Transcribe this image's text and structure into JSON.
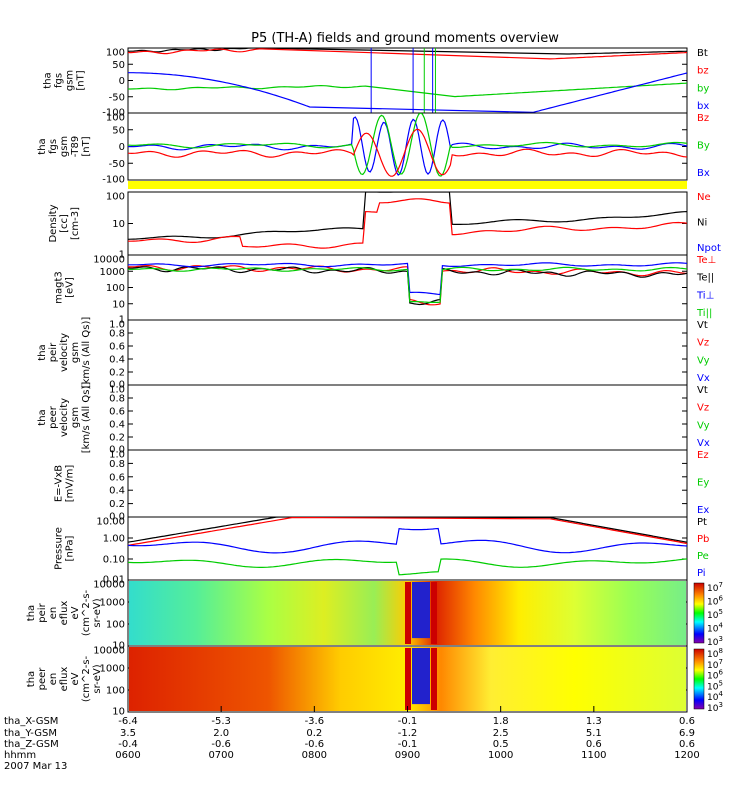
{
  "title": "P5 (TH-A) fields and ground moments overview",
  "chart_data": [
    {
      "type": "line",
      "panel": "fgs",
      "ylabel": [
        "tha",
        "fgs",
        "gsm",
        "[nT]"
      ],
      "yticks": [
        100,
        50,
        0,
        -50,
        -100
      ],
      "ylim": [
        -100,
        100
      ],
      "series": [
        {
          "name": "Bt",
          "color": "#000000"
        },
        {
          "name": "bz",
          "color": "#ff0000"
        },
        {
          "name": "by",
          "color": "#00cc00"
        },
        {
          "name": "bx",
          "color": "#0000ff"
        }
      ]
    },
    {
      "type": "line",
      "panel": "fgs-t89",
      "ylabel": [
        "tha",
        "fgs",
        "gsm",
        "-T89",
        "[nT]"
      ],
      "yticks": [
        100,
        50,
        0,
        -50,
        -100
      ],
      "ylim": [
        -120,
        100
      ],
      "series": [
        {
          "name": "Bz",
          "color": "#ff0000"
        },
        {
          "name": "By",
          "color": "#00cc00"
        },
        {
          "name": "Bx",
          "color": "#0000ff"
        }
      ]
    },
    {
      "type": "line",
      "panel": "density",
      "ylabel": [
        "Density",
        "[cc]",
        "[cm-3]"
      ],
      "yticks": [
        "100",
        "10",
        "1"
      ],
      "scale": "log",
      "series": [
        {
          "name": "Ne",
          "color": "#ff0000"
        },
        {
          "name": "Ni",
          "color": "#000000"
        },
        {
          "name": "Npot",
          "color": "#0000ff"
        }
      ]
    },
    {
      "type": "line",
      "panel": "temperature",
      "ylabel": [
        "magt3",
        "[eV]"
      ],
      "yticks": [
        "10000",
        "1000",
        "100",
        "10",
        "1"
      ],
      "scale": "log",
      "series": [
        {
          "name": "Te⊥",
          "color": "#ff0000"
        },
        {
          "name": "Te||",
          "color": "#000000"
        },
        {
          "name": "Ti⊥",
          "color": "#0000ff"
        },
        {
          "name": "Ti||",
          "color": "#00cc00"
        }
      ]
    },
    {
      "type": "line",
      "panel": "peir-velocity",
      "ylabel": [
        "tha",
        "peir",
        "velocity",
        "gsm",
        "[km/s (All Qs)]"
      ],
      "yticks": [
        "1.0",
        "0.8",
        "0.6",
        "0.4",
        "0.2",
        "0.0"
      ],
      "series": [
        {
          "name": "Vt",
          "color": "#000000"
        },
        {
          "name": "Vz",
          "color": "#ff0000"
        },
        {
          "name": "Vy",
          "color": "#00cc00"
        },
        {
          "name": "Vx",
          "color": "#0000ff"
        }
      ]
    },
    {
      "type": "line",
      "panel": "peer-velocity",
      "ylabel": [
        "tha",
        "peer",
        "velocity",
        "gsm",
        "[km/s (All Qs)]"
      ],
      "yticks": [
        "1.0",
        "0.8",
        "0.6",
        "0.4",
        "0.2",
        "0.0"
      ],
      "series": [
        {
          "name": "Vt",
          "color": "#000000"
        },
        {
          "name": "Vz",
          "color": "#ff0000"
        },
        {
          "name": "Vy",
          "color": "#00cc00"
        },
        {
          "name": "Vx",
          "color": "#0000ff"
        }
      ]
    },
    {
      "type": "line",
      "panel": "efield",
      "ylabel": [
        "E=-VxB",
        "[mV/m]"
      ],
      "yticks": [
        "1.0",
        "0.8",
        "0.6",
        "0.4",
        "0.2",
        "0.0"
      ],
      "series": [
        {
          "name": "Ez",
          "color": "#ff0000"
        },
        {
          "name": "Ey",
          "color": "#00cc00"
        },
        {
          "name": "Ex",
          "color": "#0000ff"
        }
      ]
    },
    {
      "type": "line",
      "panel": "pressure",
      "ylabel": [
        "Pressure",
        "[nPa]"
      ],
      "yticks": [
        "10.00",
        "1.00",
        "0.10",
        "0.01"
      ],
      "scale": "log",
      "series": [
        {
          "name": "Pt",
          "color": "#000000"
        },
        {
          "name": "Pb",
          "color": "#ff0000"
        },
        {
          "name": "Pe",
          "color": "#00cc00"
        },
        {
          "name": "Pi",
          "color": "#0000ff"
        }
      ]
    },
    {
      "type": "heatmap",
      "panel": "peir-eflux",
      "ylabel": [
        "tha",
        "peir",
        "en",
        "eflux",
        "eV",
        "(cm^2-s-",
        "sr-eV)"
      ],
      "yticks": [
        "10000",
        "1000",
        "100",
        "10"
      ],
      "colorbar_ticks": [
        "10^7",
        "10^6",
        "10^5",
        "10^4",
        "10^3"
      ]
    },
    {
      "type": "heatmap",
      "panel": "peer-eflux",
      "ylabel": [
        "tha",
        "peer",
        "en",
        "eflux",
        "eV",
        "(cm^2-s-",
        "sr-eV)"
      ],
      "yticks": [
        "10000",
        "1000",
        "100",
        "10"
      ],
      "colorbar_ticks": [
        "10^8",
        "10^7",
        "10^6",
        "10^5",
        "10^4",
        "10^3"
      ]
    }
  ],
  "x_axis": {
    "row_labels": [
      "tha_X-GSM",
      "tha_Y-GSM",
      "tha_Z-GSM",
      "hhmm",
      "2007 Mar 13"
    ],
    "ticks": [
      {
        "x": "-6.4",
        "y": "3.5",
        "z": "-0.4",
        "t": "0600"
      },
      {
        "x": "-5.3",
        "y": "2.0",
        "z": "-0.6",
        "t": "0700"
      },
      {
        "x": "-3.6",
        "y": "0.2",
        "z": "-0.6",
        "t": "0800"
      },
      {
        "x": "-0.1",
        "y": "-1.2",
        "z": "-0.1",
        "t": "0900"
      },
      {
        "x": "1.8",
        "y": "2.5",
        "z": "0.5",
        "t": "1000"
      },
      {
        "x": "1.3",
        "y": "5.1",
        "z": "0.6",
        "t": "1100"
      },
      {
        "x": "0.6",
        "y": "6.9",
        "z": "0.6",
        "t": "1200"
      }
    ]
  }
}
